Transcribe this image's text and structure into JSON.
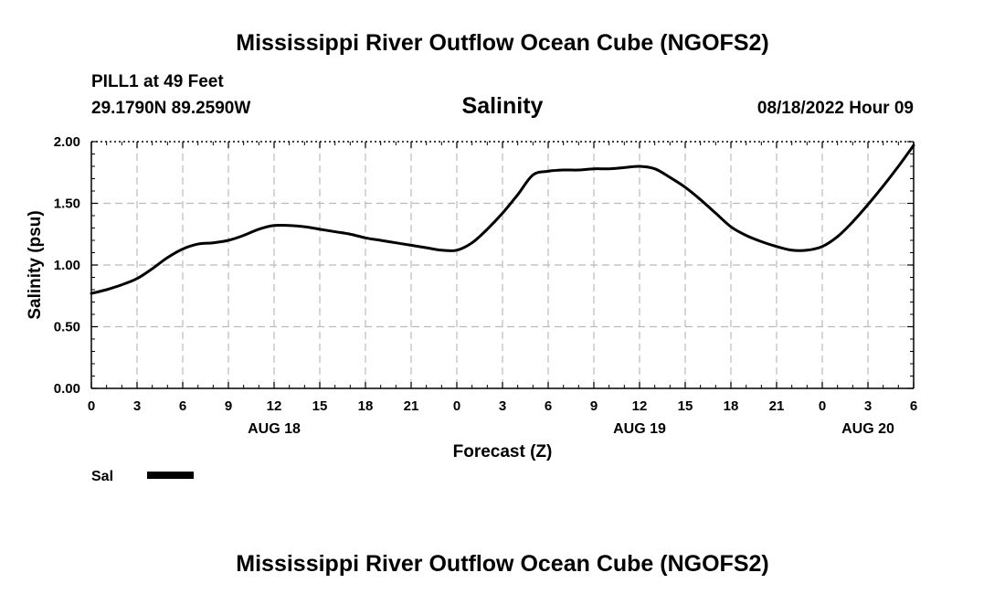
{
  "header": {
    "title": "Mississippi River Outflow Ocean Cube (NGOFS2)",
    "station": "PILL1 at 49 Feet",
    "coords": "29.1790N  89.2590W",
    "datetime": "08/18/2022 Hour 09"
  },
  "footer": {
    "title": "Mississippi River Outflow Ocean Cube (NGOFS2)"
  },
  "legend": {
    "label": "Sal"
  },
  "chart_data": {
    "type": "line",
    "title": "Salinity",
    "xlabel": "Forecast (Z)",
    "ylabel": "Salinity (psu)",
    "xlim": [
      0,
      54
    ],
    "ylim": [
      0,
      2
    ],
    "grid": true,
    "x_tick_values": [
      0,
      3,
      6,
      9,
      12,
      15,
      18,
      21,
      24,
      27,
      30,
      33,
      36,
      39,
      42,
      45,
      48,
      51,
      54
    ],
    "x_tick_labels": [
      "0",
      "3",
      "6",
      "9",
      "12",
      "15",
      "18",
      "21",
      "0",
      "3",
      "6",
      "9",
      "12",
      "15",
      "18",
      "21",
      "0",
      "3",
      "6"
    ],
    "y_tick_values": [
      0,
      0.5,
      1.0,
      1.5,
      2.0
    ],
    "y_tick_labels": [
      "0.00",
      "0.50",
      "1.00",
      "1.50",
      "2.00"
    ],
    "date_labels": [
      {
        "x": 12,
        "label": "AUG 18"
      },
      {
        "x": 36,
        "label": "AUG 19"
      },
      {
        "x": 51,
        "label": "AUG 20"
      }
    ],
    "series": [
      {
        "name": "Sal",
        "color": "#000000",
        "x": [
          0,
          1,
          2,
          3,
          4,
          5,
          6,
          7,
          8,
          9,
          10,
          11,
          12,
          13,
          14,
          15,
          16,
          17,
          18,
          19,
          20,
          21,
          22,
          23,
          24,
          25,
          26,
          27,
          28,
          29,
          30,
          31,
          32,
          33,
          34,
          35,
          36,
          37,
          38,
          39,
          40,
          41,
          42,
          43,
          44,
          45,
          46,
          47,
          48,
          49,
          50,
          51,
          52,
          53,
          54
        ],
        "values": [
          0.77,
          0.8,
          0.84,
          0.89,
          0.97,
          1.06,
          1.13,
          1.17,
          1.18,
          1.2,
          1.24,
          1.29,
          1.32,
          1.32,
          1.31,
          1.29,
          1.27,
          1.25,
          1.22,
          1.2,
          1.18,
          1.16,
          1.14,
          1.12,
          1.12,
          1.18,
          1.29,
          1.42,
          1.57,
          1.73,
          1.76,
          1.77,
          1.77,
          1.78,
          1.78,
          1.79,
          1.8,
          1.78,
          1.71,
          1.63,
          1.53,
          1.42,
          1.31,
          1.24,
          1.19,
          1.15,
          1.12,
          1.12,
          1.15,
          1.23,
          1.35,
          1.49,
          1.64,
          1.8,
          1.97
        ]
      }
    ]
  }
}
